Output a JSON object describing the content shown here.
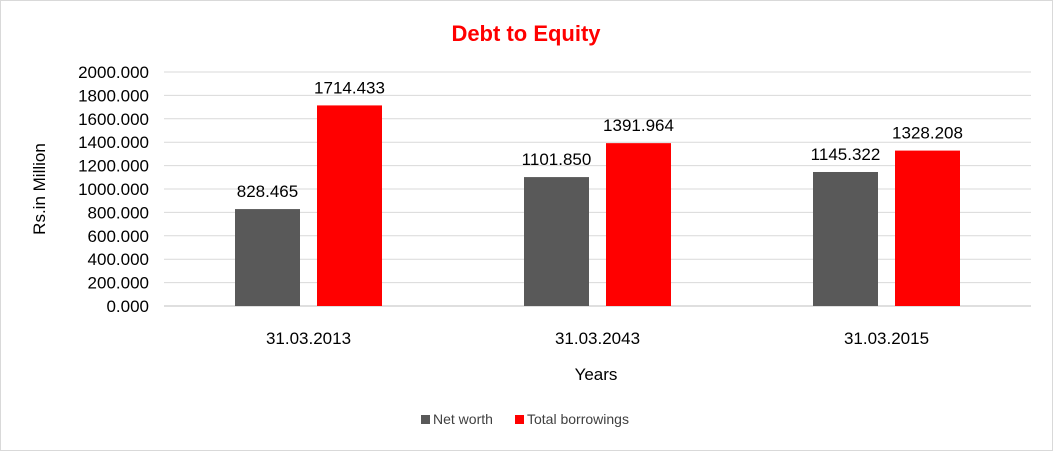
{
  "chart_data": {
    "type": "bar",
    "title": "Debt to Equity",
    "xlabel": "Years",
    "ylabel": "Rs.in Million",
    "categories": [
      "31.03.2013",
      "31.03.2043",
      "31.03.2015"
    ],
    "series": [
      {
        "name": "Net worth",
        "color": "#595959",
        "values": [
          828.465,
          1101.85,
          1145.322
        ],
        "labels": [
          "828.465",
          "1101.850",
          "1145.322"
        ]
      },
      {
        "name": "Total borrowings",
        "color": "#ff0000",
        "values": [
          1714.433,
          1391.964,
          1328.208
        ],
        "labels": [
          "1714.433",
          "1391.964",
          "1328.208"
        ]
      }
    ],
    "ylim": [
      0,
      2000
    ],
    "yticks": [
      "0.000",
      "200.000",
      "400.000",
      "600.000",
      "800.000",
      "1000.000",
      "1200.000",
      "1400.000",
      "1600.000",
      "1800.000",
      "2000.000"
    ],
    "grid": true,
    "legend_position": "bottom"
  },
  "colors": {
    "title": "#ff0000",
    "grid": "#d9d9d9"
  }
}
